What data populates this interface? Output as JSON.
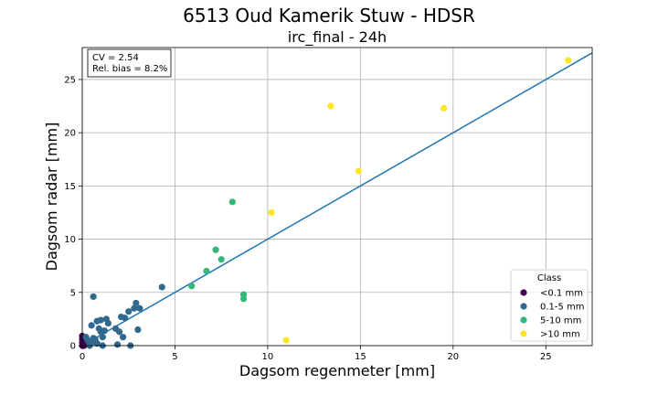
{
  "chart_data": {
    "type": "scatter",
    "suptitle": "6513 Oud Kamerik Stuw - HDSR",
    "title": "irc_final - 24h",
    "xlabel": "Dagsom regenmeter [mm]",
    "ylabel": "Dagsom radar [mm]",
    "xlim": [
      0,
      27.5
    ],
    "ylim": [
      0,
      28
    ],
    "xticks": [
      0,
      5,
      10,
      15,
      20,
      25
    ],
    "yticks": [
      0,
      5,
      10,
      15,
      20,
      25
    ],
    "grid": true,
    "stats_box": [
      "CV = 2.54",
      "Rel. bias = 8.2%"
    ],
    "legend": {
      "title": "Class",
      "placement": "lower-right"
    },
    "reference_line": {
      "x": [
        0,
        27.5
      ],
      "y": [
        0,
        27.5
      ],
      "color": "#1f77b4"
    },
    "series": [
      {
        "name": "<0.1 mm",
        "color": "#440154",
        "points": [
          [
            0.0,
            0.0
          ],
          [
            0.0,
            0.6
          ],
          [
            0.0,
            0.3
          ],
          [
            0.05,
            0.1
          ],
          [
            0.1,
            0.0
          ],
          [
            0.0,
            0.9
          ],
          [
            0.15,
            0.5
          ]
        ]
      },
      {
        "name": "0.1-5 mm",
        "color": "#31688e",
        "points": [
          [
            0.2,
            0.8
          ],
          [
            0.3,
            0.5
          ],
          [
            0.4,
            0.0
          ],
          [
            0.5,
            0.3
          ],
          [
            0.5,
            1.9
          ],
          [
            0.6,
            0.7
          ],
          [
            0.6,
            4.6
          ],
          [
            0.7,
            0.6
          ],
          [
            0.8,
            2.3
          ],
          [
            0.8,
            0.2
          ],
          [
            0.9,
            1.6
          ],
          [
            1.0,
            2.4
          ],
          [
            1.0,
            1.3
          ],
          [
            1.1,
            0.0
          ],
          [
            1.1,
            0.8
          ],
          [
            1.2,
            1.4
          ],
          [
            1.3,
            2.5
          ],
          [
            1.4,
            2.1
          ],
          [
            1.8,
            1.6
          ],
          [
            1.9,
            0.1
          ],
          [
            2.0,
            1.3
          ],
          [
            2.1,
            2.7
          ],
          [
            2.2,
            0.8
          ],
          [
            2.3,
            2.6
          ],
          [
            2.5,
            3.2
          ],
          [
            2.6,
            0.0
          ],
          [
            2.8,
            3.5
          ],
          [
            2.9,
            4.0
          ],
          [
            3.0,
            1.5
          ],
          [
            3.1,
            3.5
          ],
          [
            4.3,
            5.5
          ]
        ]
      },
      {
        "name": "5-10 mm",
        "color": "#35b779",
        "points": [
          [
            5.9,
            5.6
          ],
          [
            6.7,
            7.0
          ],
          [
            7.2,
            9.0
          ],
          [
            7.5,
            8.1
          ],
          [
            8.1,
            13.5
          ],
          [
            8.7,
            4.8
          ],
          [
            8.7,
            4.4
          ]
        ]
      },
      {
        "name": ">10 mm",
        "color": "#fde725",
        "points": [
          [
            10.2,
            12.5
          ],
          [
            11.0,
            0.5
          ],
          [
            13.4,
            22.5
          ],
          [
            14.9,
            16.4
          ],
          [
            19.5,
            22.3
          ],
          [
            26.2,
            26.8
          ]
        ]
      }
    ]
  }
}
